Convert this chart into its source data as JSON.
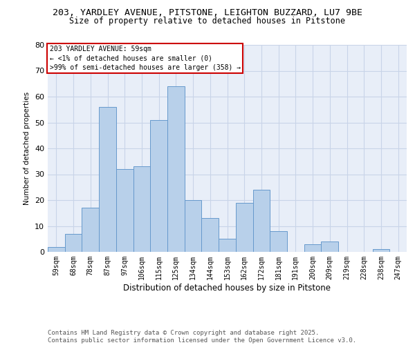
{
  "title1": "203, YARDLEY AVENUE, PITSTONE, LEIGHTON BUZZARD, LU7 9BE",
  "title2": "Size of property relative to detached houses in Pitstone",
  "xlabel": "Distribution of detached houses by size in Pitstone",
  "ylabel": "Number of detached properties",
  "categories": [
    "59sqm",
    "68sqm",
    "78sqm",
    "87sqm",
    "97sqm",
    "106sqm",
    "115sqm",
    "125sqm",
    "134sqm",
    "144sqm",
    "153sqm",
    "162sqm",
    "172sqm",
    "181sqm",
    "191sqm",
    "200sqm",
    "209sqm",
    "219sqm",
    "228sqm",
    "238sqm",
    "247sqm"
  ],
  "values": [
    2,
    7,
    17,
    56,
    32,
    33,
    51,
    64,
    20,
    13,
    5,
    19,
    24,
    8,
    0,
    3,
    4,
    0,
    0,
    1,
    0
  ],
  "bar_color": "#b8d0ea",
  "bar_edge_color": "#6699cc",
  "annotation_text": "203 YARDLEY AVENUE: 59sqm\n← <1% of detached houses are smaller (0)\n>99% of semi-detached houses are larger (358) →",
  "annotation_box_color": "#cc0000",
  "ylim": [
    0,
    80
  ],
  "yticks": [
    0,
    10,
    20,
    30,
    40,
    50,
    60,
    70,
    80
  ],
  "grid_color": "#c8d4e8",
  "bg_color": "#e8eef8",
  "footer": "Contains HM Land Registry data © Crown copyright and database right 2025.\nContains public sector information licensed under the Open Government Licence v3.0.",
  "title1_fontsize": 9.5,
  "title2_fontsize": 8.5,
  "xlabel_fontsize": 8.5,
  "ylabel_fontsize": 7.5,
  "tick_fontsize": 7,
  "annotation_fontsize": 7,
  "footer_fontsize": 6.5
}
